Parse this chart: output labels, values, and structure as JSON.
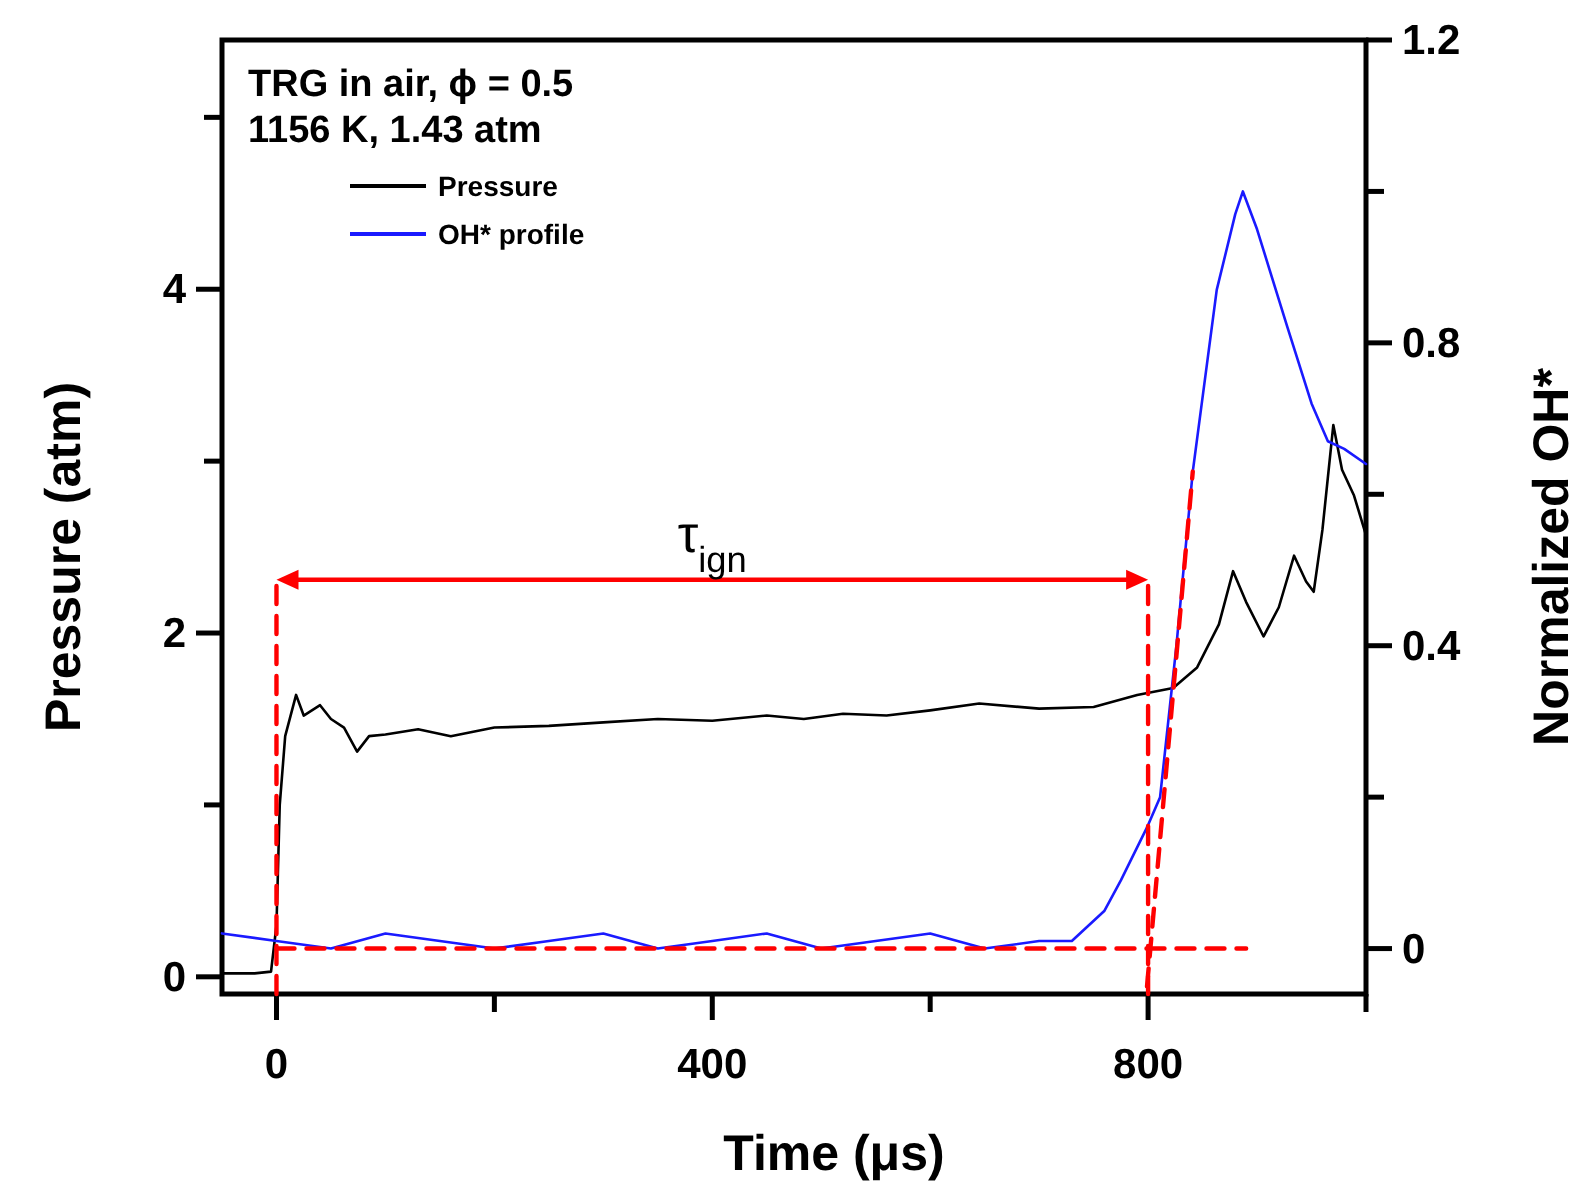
{
  "chart_data": {
    "type": "line",
    "xlabel": "Time (μs)",
    "ylabel": "Pressure (atm)",
    "y2label": "Normalized OH*",
    "xlim": [
      -50,
      1000
    ],
    "xticks": [
      0,
      {
        "value": 200,
        "label": null
      },
      400,
      {
        "value": 600,
        "label": null
      },
      800,
      {
        "value": 1000,
        "label": null
      }
    ],
    "ylim": [
      -0.1,
      5.45
    ],
    "yticks": [
      0,
      {
        "value": 1,
        "label": null
      },
      2,
      {
        "value": 3,
        "label": null
      },
      4,
      {
        "value": 5,
        "label": null
      }
    ],
    "y2lim": [
      -0.06,
      1.2
    ],
    "y2ticks": [
      0,
      {
        "value": 0.2,
        "label": null
      },
      0.4,
      {
        "value": 0.6,
        "label": null
      },
      0.8,
      {
        "value": 1.0,
        "label": null
      },
      1.2
    ],
    "grid": false,
    "legend": "top left",
    "marker": "none",
    "annotations": [
      "TRG in air, ϕ = 0.5",
      "1156 K, 1.43 atm",
      "τ$_{ign}$"
    ],
    "series": [
      {
        "name": "Pressure",
        "color": "#000000",
        "axis": "y",
        "x": [
          -50,
          -20,
          -5,
          0,
          3,
          8,
          18,
          25,
          40,
          50,
          62,
          74,
          85,
          100,
          130,
          160,
          200,
          250,
          300,
          350,
          400,
          450,
          484,
          520,
          560,
          600,
          645,
          700,
          750,
          790,
          823,
          845,
          865,
          878,
          890,
          906,
          920,
          934,
          945,
          952,
          960,
          970,
          978,
          989,
          1000
        ],
        "values": [
          0.02,
          0.02,
          0.03,
          0.3,
          1.0,
          1.4,
          1.64,
          1.52,
          1.58,
          1.5,
          1.45,
          1.31,
          1.4,
          1.41,
          1.44,
          1.4,
          1.45,
          1.46,
          1.48,
          1.5,
          1.49,
          1.52,
          1.5,
          1.53,
          1.52,
          1.55,
          1.59,
          1.56,
          1.57,
          1.64,
          1.68,
          1.8,
          2.05,
          2.36,
          2.18,
          1.98,
          2.15,
          2.45,
          2.3,
          2.24,
          2.6,
          3.21,
          2.95,
          2.8,
          2.57
        ]
      },
      {
        "name": "OH* profile",
        "color": "#1a1aff",
        "axis": "y2",
        "x": [
          -50,
          0,
          50,
          100,
          150,
          200,
          250,
          300,
          350,
          400,
          450,
          500,
          550,
          600,
          650,
          700,
          730,
          760,
          775,
          799,
          811,
          826,
          841,
          863,
          880,
          887,
          900,
          928,
          950,
          965,
          980,
          1000
        ],
        "values": [
          0.02,
          0.01,
          0.0,
          0.02,
          0.01,
          0.0,
          0.01,
          0.02,
          0.0,
          0.01,
          0.02,
          0.0,
          0.01,
          0.02,
          0.0,
          0.01,
          0.01,
          0.05,
          0.09,
          0.16,
          0.2,
          0.4,
          0.63,
          0.87,
          0.97,
          1.0,
          0.95,
          0.82,
          0.72,
          0.67,
          0.66,
          0.64
        ]
      },
      {
        "color": "#ff0000",
        "axis": "y2",
        "line_style": "dashed",
        "x": [
          799,
          841
        ],
        "values": [
          -0.05,
          0.63
        ]
      },
      {
        "color": "#ff0000",
        "axis": "y2",
        "line_style": "dashed",
        "x": [
          0,
          890
        ],
        "values": [
          0,
          0
        ]
      },
      {
        "color": "#ff0000",
        "axis": "y",
        "line_style": "dashed",
        "x": [
          0,
          0
        ],
        "values": [
          -0.1,
          2.31
        ]
      },
      {
        "color": "#ff0000",
        "axis": "y",
        "line_style": "dashed",
        "x": [
          800,
          800
        ],
        "values": [
          -0.1,
          2.31
        ]
      }
    ]
  }
}
